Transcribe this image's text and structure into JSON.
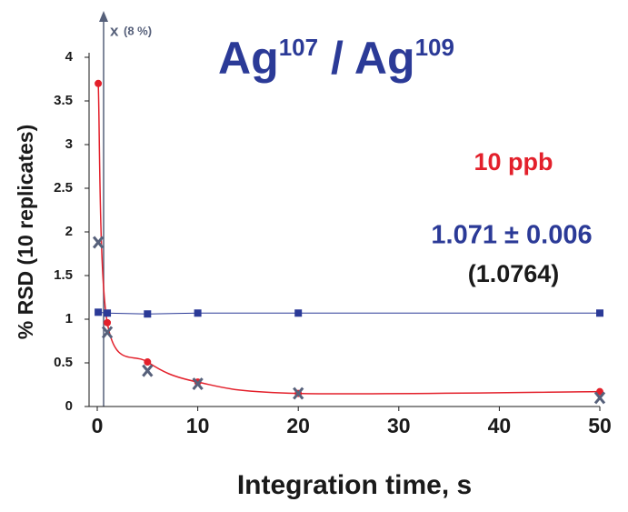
{
  "chart_data": {
    "type": "scatter",
    "title": [
      {
        "text": "Ag"
      },
      {
        "text": "107",
        "superscript": true
      },
      {
        "text": " / Ag"
      },
      {
        "text": "109",
        "superscript": true
      }
    ],
    "x_label": "Integration time, s",
    "y_label": "% RSD (10 replicates)",
    "annotations": [
      {
        "text": "10 ppb",
        "color": "#e3202b"
      },
      {
        "text": "1.071 ± 0.006",
        "color": "#2b3a97"
      },
      {
        "text": "(1.0764)",
        "color": "#1a1a1a"
      },
      {
        "text": "x",
        "color": "#56607a"
      },
      {
        "text": "(8 %)",
        "color": "#56607a"
      }
    ],
    "xlim": [
      0,
      50
    ],
    "xticks": [
      0,
      10,
      20,
      30,
      40,
      50
    ],
    "ylim": [
      0,
      4
    ],
    "yticks": [
      0,
      0.5,
      1,
      1.5,
      2,
      2.5,
      3,
      3.5,
      4
    ],
    "series": [
      {
        "color": "#e3202b",
        "marker": "circle",
        "smooth_line": true,
        "x": [
          0.1,
          1,
          5,
          10,
          20,
          50
        ],
        "values": [
          3.7,
          0.96,
          0.51,
          0.28,
          0.15,
          0.17
        ]
      },
      {
        "color": "#2b3a97",
        "marker": "square",
        "line": true,
        "x": [
          0.1,
          1,
          5,
          10,
          20,
          50
        ],
        "values": [
          1.08,
          1.07,
          1.06,
          1.07,
          1.07,
          1.07
        ]
      },
      {
        "color": "#56607a",
        "marker": "x",
        "x": [
          0.1,
          1,
          5,
          10,
          20,
          50
        ],
        "values": [
          1.88,
          0.85,
          0.41,
          0.26,
          0.15,
          0.1
        ]
      }
    ]
  }
}
